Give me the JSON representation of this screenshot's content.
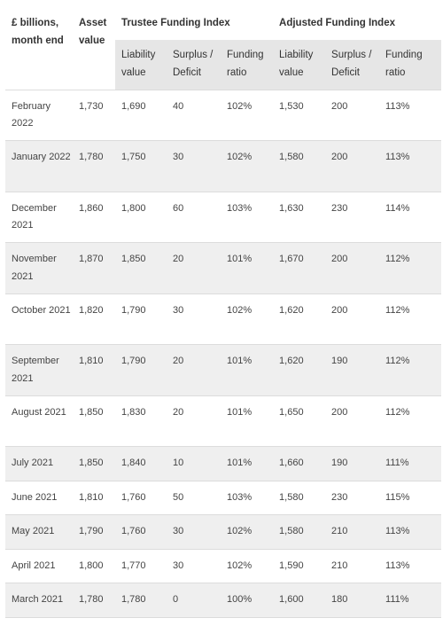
{
  "table": {
    "header": {
      "period": "£ billions, month end",
      "asset": "Asset value",
      "trustee_group": "Trustee Funding Index",
      "adjusted_group": "Adjusted Funding Index",
      "liability": "Liability value",
      "surplus": "Surplus / Deficit",
      "ratio": "Funding ratio"
    },
    "rows": [
      {
        "period": "February 2022",
        "asset": "1,730",
        "t_liability": "1,690",
        "t_surplus": "40",
        "t_ratio": "102%",
        "a_liability": "1,530",
        "a_surplus": "200",
        "a_ratio": "113%"
      },
      {
        "period": "January 2022",
        "asset": "1,780",
        "t_liability": "1,750",
        "t_surplus": "30",
        "t_ratio": "102%",
        "a_liability": "1,580",
        "a_surplus": "200",
        "a_ratio": "113%"
      },
      {
        "period": "December 2021",
        "asset": "1,860",
        "t_liability": "1,800",
        "t_surplus": "60",
        "t_ratio": "103%",
        "a_liability": "1,630",
        "a_surplus": "230",
        "a_ratio": "114%"
      },
      {
        "period": "November 2021",
        "asset": "1,870",
        "t_liability": "1,850",
        "t_surplus": "20",
        "t_ratio": "101%",
        "a_liability": "1,670",
        "a_surplus": "200",
        "a_ratio": "112%"
      },
      {
        "period": "October 2021",
        "asset": "1,820",
        "t_liability": "1,790",
        "t_surplus": "30",
        "t_ratio": "102%",
        "a_liability": "1,620",
        "a_surplus": "200",
        "a_ratio": "112%"
      },
      {
        "period": "September 2021",
        "asset": "1,810",
        "t_liability": "1,790",
        "t_surplus": "20",
        "t_ratio": "101%",
        "a_liability": "1,620",
        "a_surplus": "190",
        "a_ratio": "112%"
      },
      {
        "period": "August 2021",
        "asset": "1,850",
        "t_liability": "1,830",
        "t_surplus": "20",
        "t_ratio": "101%",
        "a_liability": "1,650",
        "a_surplus": "200",
        "a_ratio": "112%"
      },
      {
        "period": "July 2021",
        "asset": "1,850",
        "t_liability": "1,840",
        "t_surplus": "10",
        "t_ratio": "101%",
        "a_liability": "1,660",
        "a_surplus": "190",
        "a_ratio": "111%"
      },
      {
        "period": "June 2021",
        "asset": "1,810",
        "t_liability": "1,760",
        "t_surplus": "50",
        "t_ratio": "103%",
        "a_liability": "1,580",
        "a_surplus": "230",
        "a_ratio": "115%"
      },
      {
        "period": "May 2021",
        "asset": "1,790",
        "t_liability": "1,760",
        "t_surplus": "30",
        "t_ratio": "102%",
        "a_liability": "1,580",
        "a_surplus": "210",
        "a_ratio": "113%"
      },
      {
        "period": "April 2021",
        "asset": "1,800",
        "t_liability": "1,770",
        "t_surplus": "30",
        "t_ratio": "102%",
        "a_liability": "1,590",
        "a_surplus": "210",
        "a_ratio": "113%"
      },
      {
        "period": "March 2021",
        "asset": "1,780",
        "t_liability": "1,780",
        "t_surplus": "0",
        "t_ratio": "100%",
        "a_liability": "1,600",
        "a_surplus": "180",
        "a_ratio": "111%"
      }
    ]
  }
}
